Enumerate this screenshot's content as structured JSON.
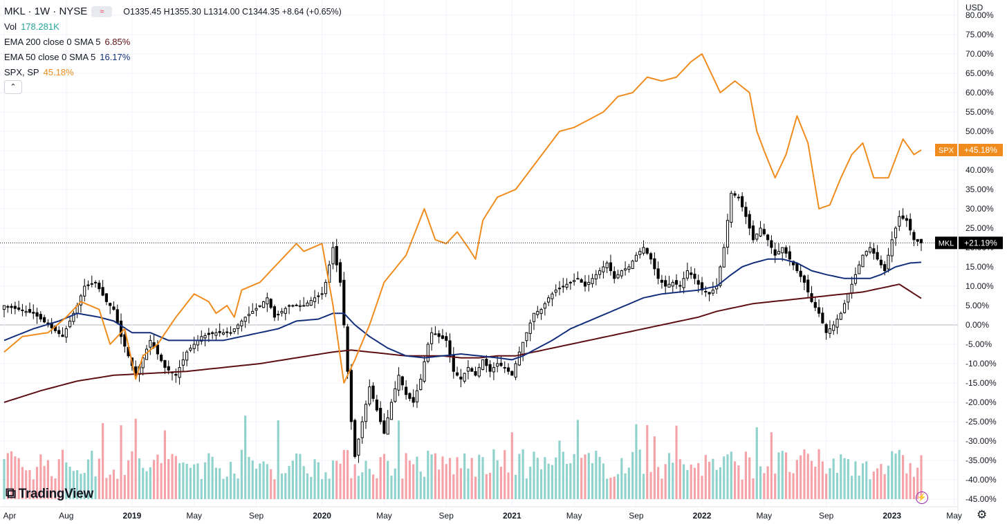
{
  "header": {
    "symbol": "MKL · 1W · NYSE",
    "ohlc": "O1335.45 H1355.30 L1314.00 C1344.35 +8.64 (+0.65%)",
    "compare_icon": "≈"
  },
  "legend": {
    "vol": {
      "label": "Vol",
      "value": "178.281K",
      "color": "#26a69a"
    },
    "ema200": {
      "label": "EMA 200 close 0 SMA 5",
      "value": "6.85%",
      "color": "#5d0f14"
    },
    "ema50": {
      "label": "EMA 50 close 0 SMA 5",
      "value": "16.17%",
      "color": "#132f7c"
    },
    "spx": {
      "label": "SPX, SP",
      "value": "45.18%",
      "color": "#f08c1d"
    },
    "collapse_icon": "chevron-up-icon"
  },
  "currency": "USD",
  "logo_text": "TradingView",
  "chart_data": {
    "type": "line",
    "y_unit": "%",
    "ylim": [
      -45,
      80
    ],
    "y_ticks": [
      "80.00%",
      "75.00%",
      "70.00%",
      "65.00%",
      "60.00%",
      "55.00%",
      "50.00%",
      "45.00%",
      "40.00%",
      "35.00%",
      "30.00%",
      "25.00%",
      "20.00%",
      "15.00%",
      "10.00%",
      "5.00%",
      "0.00%",
      "-5.00%",
      "-10.00%",
      "-15.00%",
      "-20.00%",
      "-25.00%",
      "-30.00%",
      "-35.00%",
      "-40.00%",
      "-45.00%"
    ],
    "x_ticks": [
      {
        "label": "Apr",
        "w": 0
      },
      {
        "label": "Aug",
        "w": 17
      },
      {
        "label": "2019",
        "w": 35
      },
      {
        "label": "May",
        "w": 52
      },
      {
        "label": "Sep",
        "w": 69
      },
      {
        "label": "2020",
        "w": 87
      },
      {
        "label": "May",
        "w": 104
      },
      {
        "label": "Sep",
        "w": 121
      },
      {
        "label": "2021",
        "w": 139
      },
      {
        "label": "May",
        "w": 156
      },
      {
        "label": "Sep",
        "w": 173
      },
      {
        "label": "2022",
        "w": 191
      },
      {
        "label": "May",
        "w": 208
      },
      {
        "label": "Sep",
        "w": 225
      },
      {
        "label": "2023",
        "w": 243
      },
      {
        "label": "May",
        "w": 260
      }
    ],
    "grid": true,
    "last_labels": [
      {
        "name": "SPX",
        "text": "+45.18%",
        "value": 45.18,
        "color": "#f08c1d"
      },
      {
        "name": "MKL",
        "text": "+21.19%",
        "value": 21.19,
        "color": "#000000"
      }
    ],
    "weeks": 251,
    "spx_anchors": [
      [
        0,
        -7
      ],
      [
        5,
        -3
      ],
      [
        12,
        -2
      ],
      [
        17,
        2
      ],
      [
        21,
        6
      ],
      [
        26,
        4
      ],
      [
        29,
        -5
      ],
      [
        33,
        -1
      ],
      [
        36,
        -14
      ],
      [
        38,
        -8
      ],
      [
        42,
        -5
      ],
      [
        47,
        2
      ],
      [
        52,
        8
      ],
      [
        56,
        6
      ],
      [
        58,
        3
      ],
      [
        61,
        5
      ],
      [
        63,
        2
      ],
      [
        65,
        9
      ],
      [
        70,
        11
      ],
      [
        75,
        16
      ],
      [
        80,
        21
      ],
      [
        82,
        19
      ],
      [
        87,
        21
      ],
      [
        90,
        5
      ],
      [
        93,
        -15
      ],
      [
        96,
        -9
      ],
      [
        100,
        0
      ],
      [
        104,
        11
      ],
      [
        110,
        18
      ],
      [
        115,
        30
      ],
      [
        118,
        22
      ],
      [
        121,
        21
      ],
      [
        124,
        24
      ],
      [
        127,
        20
      ],
      [
        129,
        17
      ],
      [
        131,
        27
      ],
      [
        135,
        33
      ],
      [
        140,
        35
      ],
      [
        144,
        40
      ],
      [
        148,
        45
      ],
      [
        152,
        50
      ],
      [
        156,
        51
      ],
      [
        160,
        53
      ],
      [
        164,
        55
      ],
      [
        168,
        59
      ],
      [
        172,
        60
      ],
      [
        176,
        64
      ],
      [
        180,
        63
      ],
      [
        184,
        64
      ],
      [
        188,
        68
      ],
      [
        191,
        70
      ],
      [
        193,
        66
      ],
      [
        196,
        60
      ],
      [
        200,
        63
      ],
      [
        204,
        60
      ],
      [
        206,
        50
      ],
      [
        208,
        45
      ],
      [
        211,
        38
      ],
      [
        214,
        44
      ],
      [
        217,
        54
      ],
      [
        220,
        47
      ],
      [
        223,
        30
      ],
      [
        226,
        31
      ],
      [
        229,
        38
      ],
      [
        232,
        44
      ],
      [
        235,
        47
      ],
      [
        238,
        38
      ],
      [
        242,
        38
      ],
      [
        246,
        48
      ],
      [
        249,
        44
      ],
      [
        251,
        45.18
      ]
    ],
    "mkl_anchors": [
      [
        0,
        5
      ],
      [
        8,
        3
      ],
      [
        12,
        0
      ],
      [
        16,
        -3
      ],
      [
        18,
        1
      ],
      [
        20,
        5
      ],
      [
        22,
        10
      ],
      [
        25,
        11
      ],
      [
        28,
        6
      ],
      [
        30,
        4
      ],
      [
        32,
        -3
      ],
      [
        34,
        -8
      ],
      [
        36,
        -13
      ],
      [
        40,
        -4
      ],
      [
        44,
        -11
      ],
      [
        47,
        -13
      ],
      [
        50,
        -7
      ],
      [
        54,
        -3
      ],
      [
        58,
        -2
      ],
      [
        62,
        -2
      ],
      [
        66,
        2
      ],
      [
        70,
        5
      ],
      [
        72,
        7
      ],
      [
        74,
        2
      ],
      [
        78,
        5
      ],
      [
        82,
        5
      ],
      [
        85,
        7
      ],
      [
        87,
        8
      ],
      [
        88,
        11
      ],
      [
        90,
        20
      ],
      [
        92,
        11
      ],
      [
        93,
        0
      ],
      [
        94,
        -12
      ],
      [
        95,
        -25
      ],
      [
        96,
        -34
      ],
      [
        98,
        -25
      ],
      [
        100,
        -16
      ],
      [
        102,
        -22
      ],
      [
        104,
        -28
      ],
      [
        106,
        -20
      ],
      [
        108,
        -13
      ],
      [
        110,
        -18
      ],
      [
        112,
        -20
      ],
      [
        114,
        -14
      ],
      [
        116,
        -5
      ],
      [
        117,
        -2
      ],
      [
        119,
        -3
      ],
      [
        121,
        -4
      ],
      [
        123,
        -12
      ],
      [
        125,
        -14
      ],
      [
        127,
        -11
      ],
      [
        129,
        -13
      ],
      [
        131,
        -9
      ],
      [
        133,
        -12
      ],
      [
        135,
        -10
      ],
      [
        137,
        -11
      ],
      [
        139,
        -13
      ],
      [
        141,
        -7
      ],
      [
        143,
        -2
      ],
      [
        145,
        3
      ],
      [
        147,
        4
      ],
      [
        149,
        7
      ],
      [
        151,
        9
      ],
      [
        153,
        10
      ],
      [
        155,
        11
      ],
      [
        157,
        12
      ],
      [
        159,
        10
      ],
      [
        161,
        12
      ],
      [
        163,
        14
      ],
      [
        165,
        16
      ],
      [
        167,
        12
      ],
      [
        169,
        14
      ],
      [
        171,
        15
      ],
      [
        173,
        18
      ],
      [
        175,
        20
      ],
      [
        177,
        17
      ],
      [
        179,
        12
      ],
      [
        181,
        10
      ],
      [
        183,
        11
      ],
      [
        185,
        10
      ],
      [
        187,
        14
      ],
      [
        189,
        12
      ],
      [
        191,
        9
      ],
      [
        193,
        8
      ],
      [
        195,
        10
      ],
      [
        197,
        20
      ],
      [
        199,
        34
      ],
      [
        201,
        33
      ],
      [
        203,
        28
      ],
      [
        205,
        22
      ],
      [
        207,
        25
      ],
      [
        209,
        22
      ],
      [
        211,
        18
      ],
      [
        213,
        20
      ],
      [
        215,
        17
      ],
      [
        217,
        14
      ],
      [
        219,
        11
      ],
      [
        221,
        6
      ],
      [
        223,
        3
      ],
      [
        225,
        -2
      ],
      [
        227,
        0
      ],
      [
        229,
        3
      ],
      [
        231,
        8
      ],
      [
        233,
        13
      ],
      [
        235,
        18
      ],
      [
        237,
        20
      ],
      [
        239,
        17
      ],
      [
        241,
        14
      ],
      [
        243,
        22
      ],
      [
        245,
        28
      ],
      [
        247,
        27
      ],
      [
        249,
        22
      ],
      [
        251,
        21.19
      ]
    ],
    "ema50_anchors": [
      [
        0,
        -4
      ],
      [
        8,
        -1
      ],
      [
        15,
        1
      ],
      [
        20,
        3
      ],
      [
        26,
        2
      ],
      [
        30,
        1
      ],
      [
        35,
        -2
      ],
      [
        40,
        -2
      ],
      [
        45,
        -4
      ],
      [
        50,
        -4
      ],
      [
        55,
        -4
      ],
      [
        60,
        -4
      ],
      [
        65,
        -3
      ],
      [
        70,
        -2
      ],
      [
        75,
        -1
      ],
      [
        80,
        1
      ],
      [
        86,
        1.5
      ],
      [
        90,
        3
      ],
      [
        93,
        3
      ],
      [
        96,
        0
      ],
      [
        100,
        -3
      ],
      [
        105,
        -6
      ],
      [
        110,
        -8
      ],
      [
        115,
        -8.5
      ],
      [
        120,
        -8
      ],
      [
        125,
        -7.5
      ],
      [
        130,
        -8
      ],
      [
        135,
        -8.5
      ],
      [
        139,
        -9
      ],
      [
        142,
        -8
      ],
      [
        146,
        -6
      ],
      [
        150,
        -4
      ],
      [
        155,
        -1
      ],
      [
        160,
        1
      ],
      [
        165,
        3
      ],
      [
        170,
        5
      ],
      [
        175,
        7
      ],
      [
        180,
        8
      ],
      [
        185,
        8.5
      ],
      [
        190,
        9
      ],
      [
        195,
        10
      ],
      [
        199,
        13
      ],
      [
        202,
        15
      ],
      [
        205,
        16
      ],
      [
        209,
        17
      ],
      [
        213,
        17
      ],
      [
        217,
        16
      ],
      [
        221,
        14
      ],
      [
        225,
        13
      ],
      [
        230,
        12
      ],
      [
        233,
        12
      ],
      [
        237,
        12
      ],
      [
        240,
        13
      ],
      [
        244,
        15
      ],
      [
        248,
        16
      ],
      [
        251,
        16.17
      ]
    ],
    "ema200_anchors": [
      [
        0,
        -20
      ],
      [
        10,
        -17
      ],
      [
        20,
        -14.5
      ],
      [
        30,
        -13
      ],
      [
        40,
        -12.5
      ],
      [
        50,
        -12
      ],
      [
        60,
        -11
      ],
      [
        70,
        -10
      ],
      [
        80,
        -8.5
      ],
      [
        90,
        -7
      ],
      [
        95,
        -6.5
      ],
      [
        100,
        -7
      ],
      [
        105,
        -7.5
      ],
      [
        110,
        -8
      ],
      [
        115,
        -8
      ],
      [
        120,
        -8
      ],
      [
        125,
        -8.5
      ],
      [
        130,
        -8.5
      ],
      [
        135,
        -8
      ],
      [
        140,
        -8
      ],
      [
        145,
        -7
      ],
      [
        150,
        -6
      ],
      [
        155,
        -5
      ],
      [
        160,
        -4
      ],
      [
        165,
        -3
      ],
      [
        170,
        -2
      ],
      [
        175,
        -1
      ],
      [
        180,
        0
      ],
      [
        185,
        1
      ],
      [
        190,
        2
      ],
      [
        195,
        3.5
      ],
      [
        200,
        4.5
      ],
      [
        205,
        5.5
      ],
      [
        210,
        6
      ],
      [
        215,
        6.5
      ],
      [
        220,
        7
      ],
      [
        225,
        7.5
      ],
      [
        230,
        8
      ],
      [
        235,
        8.5
      ],
      [
        240,
        9.5
      ],
      [
        245,
        10.5
      ],
      [
        251,
        6.85
      ]
    ],
    "volume": {
      "baseline_pct": -45,
      "max_pct": 13
    }
  }
}
